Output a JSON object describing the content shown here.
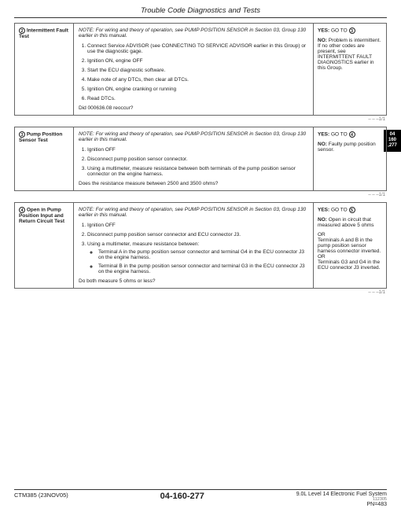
{
  "header": {
    "title": "Trouble Code Diagnostics and Tests"
  },
  "sideTab": {
    "l1": "04",
    "l2": "160",
    "l3": ",277"
  },
  "sec2": {
    "num": "2",
    "title": "Intermittent Fault Test",
    "note": "NOTE: For wiring and theory of operation, see PUMP POSITION SENSOR in Section 03, Group 130 earlier in this manual.",
    "s1": "Connect Service ADVISOR (see CONNECTING TO SERVICE ADVISOR earlier in this Group) or use the diagnostic gage.",
    "s2": "Ignition ON, engine OFF",
    "s3": "Start the ECU diagnostic software.",
    "s4": "Make note of any DTCs, then clear all DTCs.",
    "s5": "Ignition ON, engine cranking or running",
    "s6": "Read DTCs.",
    "q": "Did 000636.08 reoccur?",
    "yesLabel": "YES:",
    "yesText": " GO TO ",
    "yesTarget": "3",
    "noLabel": "NO:",
    "noText": " Problem is intermittent. If no other codes are present, see INTERMITTENT FAULT DIAGNOSTICS earlier in this Group.",
    "cont": "– – –1/1"
  },
  "sec3": {
    "num": "3",
    "title": "Pump Position Sensor Test",
    "note": "NOTE: For wiring and theory of operation, see PUMP POSITION SENSOR in Section 03, Group 130 earlier in this manual.",
    "s1": "Ignition OFF",
    "s2": "Disconnect pump position sensor connector.",
    "s3": "Using a multimeter, measure resistance between both terminals of the pump position sensor connector on the engine harness.",
    "q": "Does the resistance measure between 2500 and 3500 ohms?",
    "yesLabel": "YES:",
    "yesText": " GO TO ",
    "yesTarget": "4",
    "noLabel": "NO:",
    "noText": " Faulty pump position sensor.",
    "cont": "– – –1/1"
  },
  "sec4": {
    "num": "4",
    "title": "Open in Pump Position Input and Return Circuit Test",
    "note": "NOTE: For wiring and theory of operation, see PUMP POSITION SENSOR in Section 03, Group 130 earlier in this manual.",
    "s1": "Ignition OFF",
    "s2": "Disconnect pump position sensor connector and ECU connector J3.",
    "s3": "Using a multimeter, measure resistance between:",
    "b1": "Terminal A in the pump position sensor connector and terminal G4 in the ECU connector J3 on the engine harness.",
    "b2": "Terminal B in the pump position sensor connector and terminal G3 in the ECU connector J3 on the engine harness.",
    "q": "Do both measure 5 ohms or less?",
    "yesLabel": "YES:",
    "yesText": " GO TO ",
    "yesTarget": "5",
    "noLabel": "NO:",
    "noText": " Open in circuit that measured above 5 ohms",
    "or1": "OR",
    "noText2": "Terminals A and B in the pump position sensor harness connector inverted.",
    "or2": "OR",
    "noText3": "Terminals G3 and G4 in the ECU connector J3 inverted.",
    "cont": "– – –1/1"
  },
  "footer": {
    "left": "CTM385 (23NOV05)",
    "center": "04-160-277",
    "right": "9.0L Level 14 Electronic Fuel System",
    "small": "112305",
    "pn": "PN=483"
  }
}
